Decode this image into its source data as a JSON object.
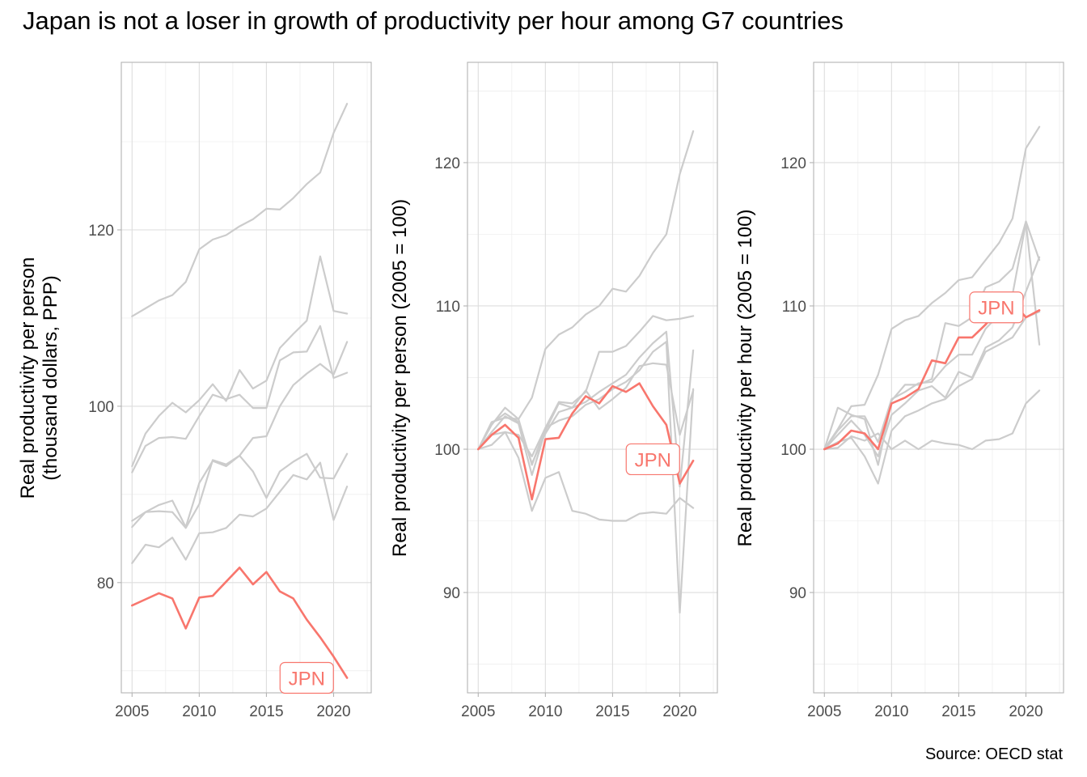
{
  "title": "Japan is not a loser in growth of productivity per hour among G7 countries",
  "caption": "Source: OECD stat",
  "colors": {
    "highlight": "#F8766D",
    "other": "#cccccc",
    "grid": "#dedede",
    "border": "#b3b3b3"
  },
  "chart_data": [
    {
      "type": "line",
      "ylabel": "Real productivity per person\n(thousand dollars, PPP)",
      "xlim": [
        2004.2,
        2022.8
      ],
      "ylim": [
        67.5,
        139
      ],
      "x_ticks": [
        2005,
        2010,
        2015,
        2020
      ],
      "y_ticks": [
        80,
        100,
        120
      ],
      "grid": true,
      "x": [
        2005,
        2006,
        2007,
        2008,
        2009,
        2010,
        2011,
        2012,
        2013,
        2014,
        2015,
        2016,
        2017,
        2018,
        2019,
        2020,
        2021
      ],
      "highlight_label": "JPN",
      "series": [
        {
          "name": "",
          "highlight": false,
          "values": [
            110.2,
            111.1,
            112.0,
            112.6,
            114.1,
            117.8,
            118.9,
            119.4,
            120.4,
            121.2,
            122.4,
            122.3,
            123.6,
            125.2,
            126.5,
            131.0,
            134.3
          ]
        },
        {
          "name": "",
          "highlight": false,
          "values": [
            93.2,
            96.9,
            98.9,
            100.4,
            99.3,
            100.7,
            102.5,
            100.6,
            104.1,
            102.0,
            102.9,
            106.6,
            108.2,
            109.7,
            117.0,
            110.8,
            110.5
          ]
        },
        {
          "name": "",
          "highlight": false,
          "values": [
            92.5,
            95.5,
            96.4,
            96.5,
            96.3,
            98.9,
            101.3,
            100.8,
            101.3,
            99.8,
            99.8,
            105.2,
            106.1,
            106.2,
            109.1,
            103.2,
            103.8
          ]
        },
        {
          "name": "",
          "highlight": false,
          "values": [
            86.3,
            88.0,
            88.1,
            88.0,
            86.2,
            88.9,
            93.9,
            93.4,
            94.4,
            96.4,
            96.6,
            100.0,
            102.4,
            103.7,
            104.8,
            103.6,
            107.3
          ]
        },
        {
          "name": "",
          "highlight": false,
          "values": [
            87.0,
            88.0,
            88.8,
            89.3,
            86.3,
            91.3,
            93.8,
            93.2,
            94.4,
            92.6,
            89.6,
            92.6,
            93.7,
            94.6,
            91.9,
            91.8,
            94.6
          ]
        },
        {
          "name": "",
          "highlight": false,
          "values": [
            82.2,
            84.3,
            84.0,
            85.1,
            82.6,
            85.6,
            85.7,
            86.2,
            87.7,
            87.5,
            88.4,
            90.3,
            92.2,
            91.7,
            93.6,
            87.1,
            90.9
          ]
        },
        {
          "name": "JPN",
          "highlight": true,
          "values": [
            77.4,
            78.1,
            78.8,
            78.2,
            74.8,
            78.3,
            78.5,
            80.1,
            81.7,
            79.8,
            81.2,
            79.0,
            78.2,
            75.8,
            73.8,
            71.6,
            69.2
          ]
        }
      ]
    },
    {
      "type": "line",
      "ylabel": "Real productivity per person (2005 = 100)",
      "xlim": [
        2004.2,
        2022.8
      ],
      "ylim": [
        83,
        127
      ],
      "x_ticks": [
        2005,
        2010,
        2015,
        2020
      ],
      "y_ticks": [
        90,
        100,
        110,
        120
      ],
      "grid": true,
      "x": [
        2005,
        2006,
        2007,
        2008,
        2009,
        2010,
        2011,
        2012,
        2013,
        2014,
        2015,
        2016,
        2017,
        2018,
        2019,
        2020,
        2021
      ],
      "highlight_label": "JPN",
      "series": [
        {
          "name": "",
          "highlight": false,
          "values": [
            100,
            101.9,
            102.2,
            102.1,
            103.6,
            107.0,
            108.0,
            108.5,
            109.4,
            110.0,
            111.2,
            111.0,
            112.1,
            113.7,
            115.0,
            119.2,
            122.2
          ]
        },
        {
          "name": "",
          "highlight": false,
          "values": [
            100,
            101.7,
            102.9,
            102.1,
            98.9,
            101.5,
            103.3,
            103.2,
            104.0,
            106.8,
            106.8,
            107.2,
            108.2,
            109.3,
            109.0,
            109.1,
            109.3
          ]
        },
        {
          "name": "",
          "highlight": false,
          "values": [
            100,
            101.8,
            102.5,
            101.9,
            99.0,
            101.1,
            102.6,
            102.9,
            103.3,
            104.0,
            104.6,
            105.2,
            106.4,
            107.4,
            108.2,
            97.4,
            106.9
          ]
        },
        {
          "name": "",
          "highlight": false,
          "values": [
            100,
            101.2,
            102.3,
            101.8,
            98.2,
            101.3,
            103.2,
            102.9,
            104.1,
            102.8,
            103.5,
            104.3,
            105.8,
            106.0,
            105.9,
            101.0,
            104.1
          ]
        },
        {
          "name": "",
          "highlight": false,
          "values": [
            100,
            100.3,
            101.2,
            101.0,
            99.5,
            101.5,
            102.0,
            102.3,
            103.1,
            103.5,
            104.2,
            104.7,
            105.5,
            106.8,
            107.5,
            88.6,
            104.2
          ]
        },
        {
          "name": "",
          "highlight": false,
          "values": [
            100,
            101.0,
            101.2,
            99.4,
            95.7,
            98.0,
            98.4,
            95.7,
            95.5,
            95.1,
            95.0,
            95.0,
            95.5,
            95.6,
            95.5,
            96.6,
            95.9
          ]
        },
        {
          "name": "JPN",
          "highlight": true,
          "values": [
            100,
            101.0,
            101.7,
            100.8,
            96.5,
            100.7,
            100.8,
            102.5,
            103.7,
            103.2,
            104.4,
            104.0,
            104.6,
            103.0,
            101.7,
            97.6,
            99.2
          ]
        }
      ]
    },
    {
      "type": "line",
      "ylabel": "Real productivity per hour (2005 = 100)",
      "xlim": [
        2004.2,
        2022.8
      ],
      "ylim": [
        83,
        127
      ],
      "x_ticks": [
        2005,
        2010,
        2015,
        2020
      ],
      "y_ticks": [
        90,
        100,
        110,
        120
      ],
      "grid": true,
      "x": [
        2005,
        2006,
        2007,
        2008,
        2009,
        2010,
        2011,
        2012,
        2013,
        2014,
        2015,
        2016,
        2017,
        2018,
        2019,
        2020,
        2021
      ],
      "highlight_label": "JPN",
      "series": [
        {
          "name": "",
          "highlight": false,
          "values": [
            100,
            101.4,
            103.0,
            103.1,
            105.2,
            108.4,
            109.0,
            109.3,
            110.2,
            110.9,
            111.8,
            112.0,
            113.2,
            114.4,
            116.1,
            121.0,
            122.5
          ]
        },
        {
          "name": "",
          "highlight": false,
          "values": [
            100,
            102.9,
            102.4,
            102.1,
            98.9,
            103.4,
            104.5,
            104.5,
            104.9,
            108.8,
            108.6,
            109.2,
            111.3,
            111.7,
            112.6,
            115.9,
            113.2
          ]
        },
        {
          "name": "",
          "highlight": false,
          "values": [
            100,
            101.3,
            102.3,
            102.3,
            100.5,
            103.5,
            104.0,
            104.6,
            104.7,
            105.8,
            106.6,
            106.6,
            108.4,
            109.4,
            110.8,
            115.8,
            107.3
          ]
        },
        {
          "name": "",
          "highlight": false,
          "values": [
            100,
            101.0,
            102.0,
            101.0,
            99.5,
            102.4,
            103.2,
            104.1,
            104.4,
            103.6,
            105.4,
            105.0,
            107.1,
            107.6,
            108.5,
            111.0,
            113.4
          ]
        },
        {
          "name": "",
          "highlight": false,
          "values": [
            100,
            100.5,
            100.8,
            99.5,
            97.6,
            101.3,
            102.3,
            102.7,
            103.2,
            103.5,
            104.4,
            104.9,
            106.8,
            107.3,
            107.8,
            109.2,
            109.6
          ]
        },
        {
          "name": "",
          "highlight": false,
          "values": [
            100,
            100.1,
            100.9,
            100.6,
            101.1,
            100.0,
            100.6,
            100.0,
            100.6,
            100.4,
            100.3,
            100.0,
            100.6,
            100.7,
            101.1,
            103.2,
            104.1
          ]
        },
        {
          "name": "JPN",
          "highlight": true,
          "values": [
            100,
            100.4,
            101.3,
            101.1,
            100.0,
            103.2,
            103.6,
            104.2,
            106.2,
            106.0,
            107.8,
            107.8,
            108.7,
            109.8,
            110.3,
            109.2,
            109.7
          ]
        }
      ]
    }
  ]
}
